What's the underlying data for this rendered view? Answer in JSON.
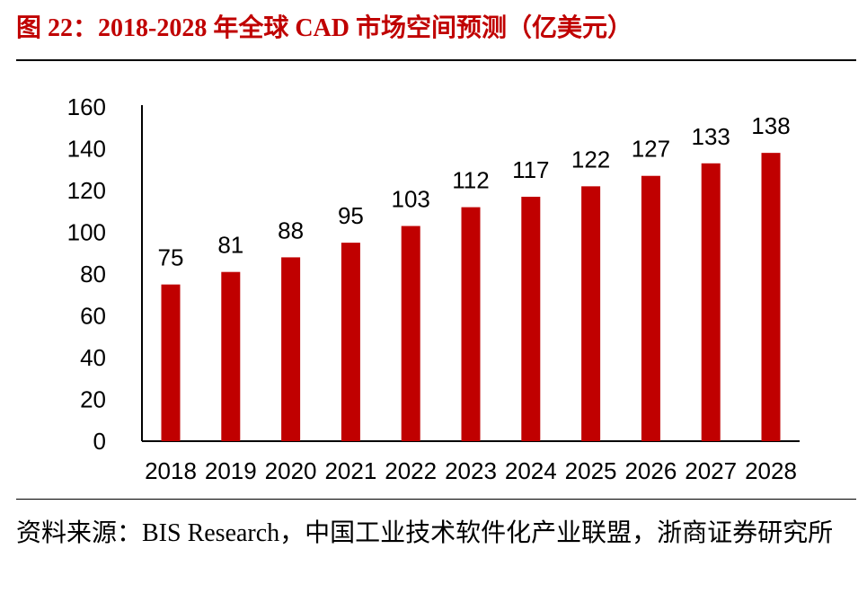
{
  "figure": {
    "title": "图 22：2018-2028 年全球 CAD 市场空间预测（亿美元）",
    "source": "资料来源：BIS Research，中国工业技术软件化产业联盟，浙商证券研究所"
  },
  "colors": {
    "title": "#c00000",
    "bar": "#c00000",
    "axis": "#000000",
    "text": "#000000"
  },
  "chart_data": {
    "type": "bar",
    "title": "2018-2028 年全球 CAD 市场空间预测（亿美元）",
    "xlabel": "",
    "ylabel": "",
    "categories": [
      "2018",
      "2019",
      "2020",
      "2021",
      "2022",
      "2023",
      "2024",
      "2025",
      "2026",
      "2027",
      "2028"
    ],
    "values": [
      75,
      81,
      88,
      95,
      103,
      112,
      117,
      122,
      127,
      133,
      138
    ],
    "value_labels": [
      "75",
      "81",
      "88",
      "95",
      "103",
      "112",
      "117",
      "122",
      "127",
      "133",
      "138"
    ],
    "ylim": [
      0,
      160
    ],
    "yticks": [
      0,
      20,
      40,
      60,
      80,
      100,
      120,
      140,
      160
    ],
    "ytick_labels": [
      "0",
      "20",
      "40",
      "60",
      "80",
      "100",
      "120",
      "140",
      "160"
    ],
    "grid": false,
    "legend": "none"
  }
}
